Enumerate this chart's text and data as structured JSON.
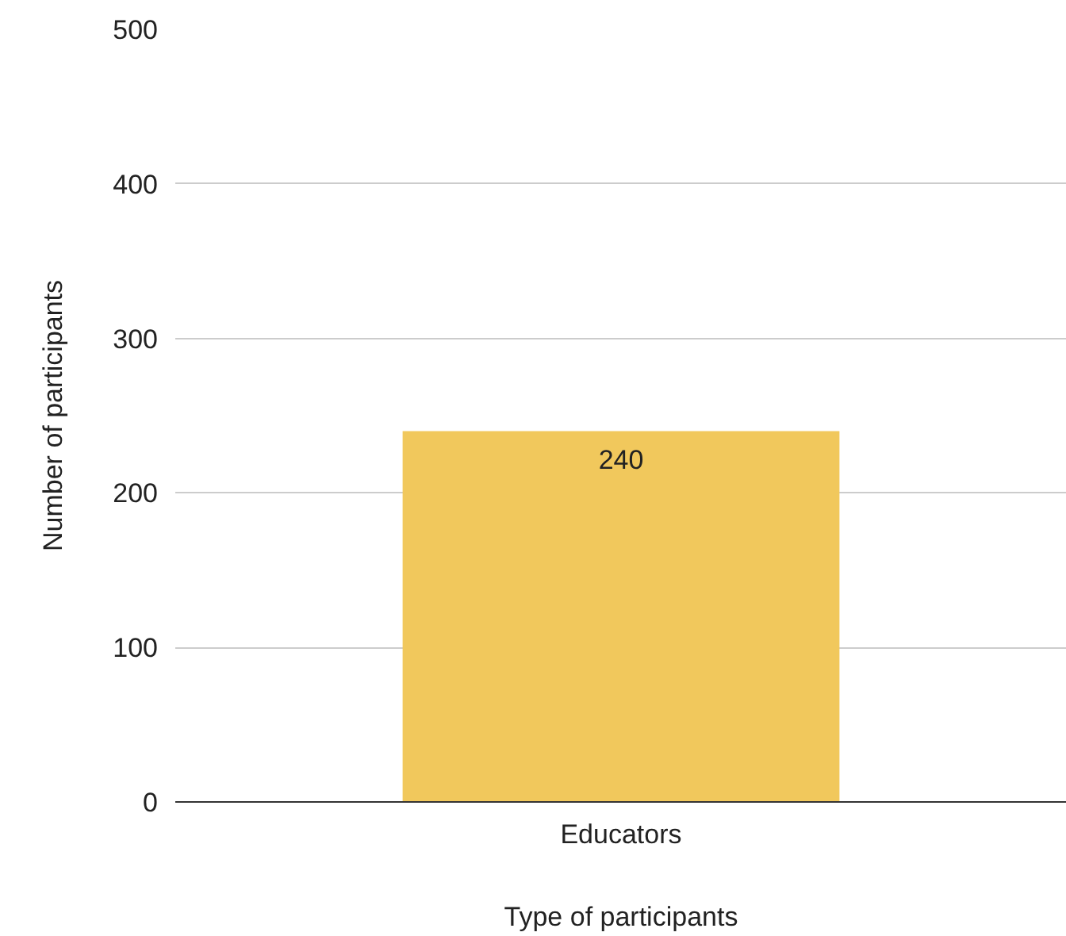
{
  "chart_data": {
    "type": "bar",
    "xlabel": "Type of participants",
    "ylabel": "Number of participants",
    "categories": [
      "Educators"
    ],
    "values": [
      240
    ],
    "color": "#f1c85c",
    "ylim": [
      0,
      500
    ],
    "yticks": [
      0,
      100,
      200,
      300,
      400,
      500
    ],
    "grid": "y",
    "data_labels": true
  }
}
